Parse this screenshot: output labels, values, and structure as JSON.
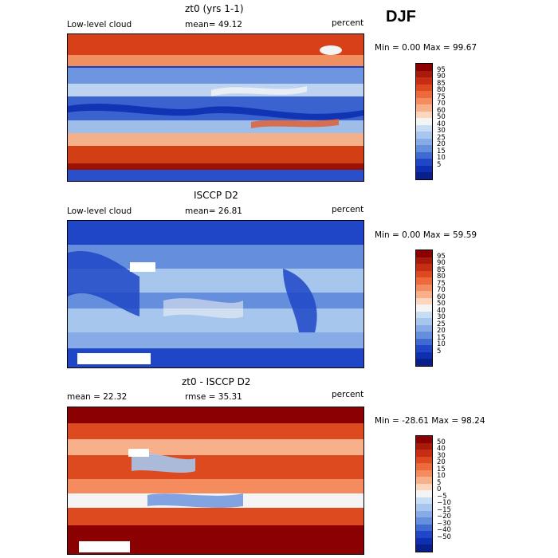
{
  "season": "DJF",
  "panels": [
    {
      "title": "zt0 (yrs 1-1)",
      "left_label": "Low-level cloud",
      "mid_label": "mean=  49.12",
      "units": "percent",
      "range": "Min =   0.00 Max =  99.67",
      "colorbar_ticks": [
        "95",
        "90",
        "85",
        "80",
        "75",
        "70",
        "60",
        "50",
        "40",
        "30",
        "25",
        "20",
        "15",
        "10",
        "5"
      ]
    },
    {
      "title": "ISCCP D2",
      "left_label": "Low-level cloud",
      "mid_label": "mean=  26.81",
      "units": "percent",
      "range": "Min =   0.00 Max =  59.59",
      "colorbar_ticks": [
        "95",
        "90",
        "85",
        "80",
        "75",
        "70",
        "60",
        "50",
        "40",
        "30",
        "25",
        "20",
        "15",
        "10",
        "5"
      ]
    },
    {
      "title": "zt0 - ISCCP D2",
      "left_label": "mean =  22.32",
      "mid_label": "rmse =  35.31",
      "units": "percent",
      "range": "Min = -28.61 Max =  98.24",
      "colorbar_ticks": [
        "50",
        "40",
        "30",
        "20",
        "15",
        "10",
        "5",
        "0",
        "−5",
        "−10",
        "−15",
        "−20",
        "−30",
        "−40",
        "−50"
      ]
    }
  ],
  "colors": {
    "scale": [
      "#8b0000",
      "#a81a0a",
      "#c72d12",
      "#de4a20",
      "#ec6a3c",
      "#f48c60",
      "#f7b08a",
      "#fcd6bc",
      "#f4f4f4",
      "#c8dcf4",
      "#a6c6ee",
      "#86abe6",
      "#658fdd",
      "#3f6ad2",
      "#1e46c6",
      "#0d2fb0",
      "#0a1f8c"
    ]
  }
}
